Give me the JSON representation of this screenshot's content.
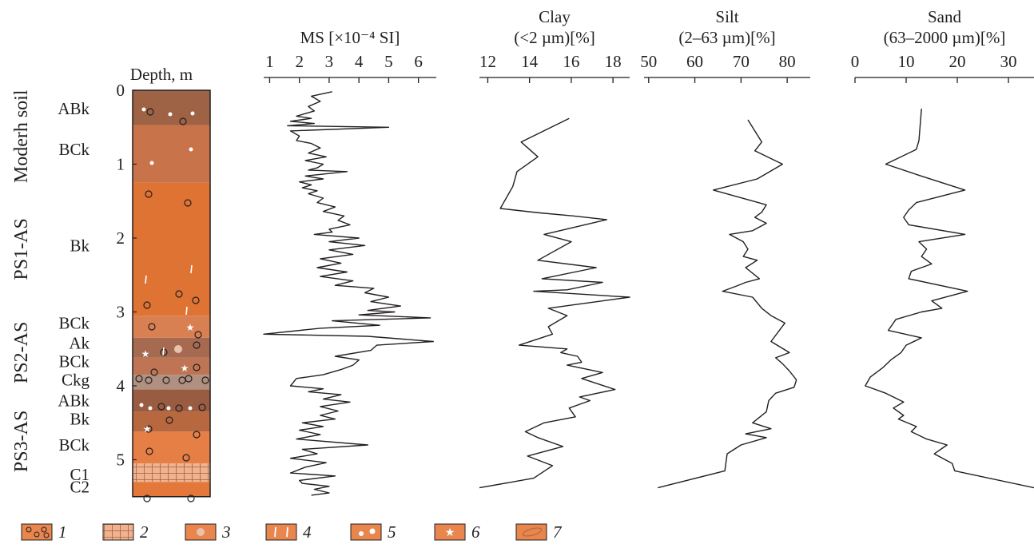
{
  "column": {
    "depth_label": "Depth, m",
    "depth_ticks": [
      "0",
      "1",
      "2",
      "3",
      "4",
      "5"
    ],
    "units": [
      {
        "label": "Moderh soil",
        "top": 0,
        "bottom": 1.25
      },
      {
        "label": "PS1-AS",
        "top": 1.25,
        "bottom": 3.05
      },
      {
        "label": "PS2-AS",
        "top": 3.05,
        "bottom": 4.05
      },
      {
        "label": "PS3-AS",
        "top": 4.05,
        "bottom": 5.45
      }
    ],
    "horizons": [
      {
        "label": "ABk",
        "top": 0,
        "bottom": 0.47,
        "label_depth": 0.25,
        "color": "#9e6245"
      },
      {
        "label": "BCk",
        "top": 0.47,
        "bottom": 1.25,
        "label_depth": 0.8,
        "color": "#c8734a"
      },
      {
        "label": "Bk",
        "top": 1.25,
        "bottom": 3.05,
        "label_depth": 2.1,
        "color": "#de7334"
      },
      {
        "label": "BCk",
        "top": 3.05,
        "bottom": 3.35,
        "label_depth": 3.15,
        "color": "#d98052"
      },
      {
        "label": "Ak",
        "top": 3.35,
        "bottom": 3.62,
        "label_depth": 3.42,
        "color": "#a66a51"
      },
      {
        "label": "BCk",
        "top": 3.62,
        "bottom": 3.85,
        "label_depth": 3.67,
        "color": "#bf7553"
      },
      {
        "label": "Ckg",
        "top": 3.85,
        "bottom": 4.05,
        "label_depth": 3.92,
        "color": "#b09080"
      },
      {
        "label": "ABk",
        "top": 4.05,
        "bottom": 4.35,
        "label_depth": 4.2,
        "color": "#995c40"
      },
      {
        "label": "Bk",
        "top": 4.35,
        "bottom": 4.62,
        "label_depth": 4.45,
        "color": "#b8683f"
      },
      {
        "label": "BCk",
        "top": 4.62,
        "bottom": 5.05,
        "label_depth": 4.8,
        "color": "#e57f45"
      },
      {
        "label": "C1",
        "top": 5.05,
        "bottom": 5.3,
        "label_depth": 5.2,
        "color": "#f0b38e"
      },
      {
        "label": "C2",
        "top": 5.3,
        "bottom": 5.5,
        "label_depth": 5.37,
        "color": "#e3783a"
      }
    ]
  },
  "legend": {
    "items": [
      {
        "number": "1",
        "symbol": "carbonate-nodules",
        "color": "#e8864d"
      },
      {
        "number": "2",
        "symbol": "laminated-grid",
        "color": "#f0b38e"
      },
      {
        "number": "3",
        "symbol": "krotovina-spot",
        "color": "#e8864d"
      },
      {
        "number": "4",
        "symbol": "carbonate-veins",
        "color": "#e8864d"
      },
      {
        "number": "5",
        "symbol": "white-dots",
        "color": "#e8864d"
      },
      {
        "number": "6",
        "symbol": "white-star",
        "color": "#e8864d"
      },
      {
        "number": "7",
        "symbol": "oval-lens",
        "color": "#e8864d"
      }
    ]
  },
  "chart_data": [
    {
      "type": "line",
      "title": "MS [×10⁻⁴ SI]",
      "title_line1": "",
      "title_line2": "MS [×10⁻⁴ SI]",
      "xlabel": "MS [×10⁻⁴ SI]",
      "ylabel": "Depth, m",
      "xlim": [
        0.8,
        6.6
      ],
      "ylim": [
        0,
        5.5
      ],
      "xticks": [
        1,
        2,
        3,
        4,
        5,
        6
      ],
      "series": [
        {
          "x": [
            3.1,
            2.4,
            2.7,
            2.3,
            2.5,
            1.9,
            2.4,
            1.7,
            2.5,
            1.6,
            5.0,
            1.7,
            2.0,
            1.9,
            2.4,
            2.7,
            2.3,
            2.9,
            2.2,
            2.8,
            2.6,
            2.3,
            3.6,
            2.2,
            2.8,
            2.0,
            2.4,
            2.1,
            2.6,
            2.3,
            2.8,
            2.6,
            3.2,
            2.8,
            3.5,
            3.3,
            3.7,
            3.0,
            3.1,
            2.5,
            4.0,
            3.0,
            4.2,
            3.0,
            3.8,
            2.7,
            3.4,
            2.6,
            3.6,
            2.7,
            3.8,
            3.2,
            4.5,
            4.2,
            5.0,
            4.4,
            5.4,
            4.3,
            5.2,
            4.0,
            6.4,
            3.1,
            4.7,
            2.7,
            0.8,
            4.3,
            6.5,
            4.6,
            4.4,
            3.2,
            4.0,
            3.8,
            3.4,
            2.8,
            1.9,
            1.7,
            2.8,
            2.3,
            3.4,
            2.8,
            3.7,
            2.7,
            3.3,
            2.7,
            3.2,
            2.1,
            2.8,
            2.0,
            2.7,
            1.9,
            4.3,
            2.1,
            2.6,
            1.7,
            2.9,
            2.2,
            1.7,
            3.2,
            2.0,
            2.1,
            3.0,
            2.5,
            3.0,
            2.4
          ],
          "y": [
            0.02,
            0.08,
            0.15,
            0.22,
            0.28,
            0.35,
            0.38,
            0.42,
            0.45,
            0.48,
            0.5,
            0.55,
            0.62,
            0.68,
            0.72,
            0.78,
            0.85,
            0.9,
            0.95,
            1.0,
            1.05,
            1.08,
            1.1,
            1.16,
            1.2,
            1.24,
            1.28,
            1.32,
            1.36,
            1.4,
            1.46,
            1.52,
            1.58,
            1.64,
            1.7,
            1.76,
            1.82,
            1.88,
            1.92,
            1.95,
            2.0,
            2.05,
            2.1,
            2.16,
            2.22,
            2.28,
            2.34,
            2.4,
            2.46,
            2.52,
            2.58,
            2.64,
            2.68,
            2.74,
            2.8,
            2.86,
            2.92,
            2.98,
            3.0,
            3.04,
            3.08,
            3.12,
            3.18,
            3.22,
            3.3,
            3.33,
            3.4,
            3.45,
            3.52,
            3.6,
            3.65,
            3.72,
            3.78,
            3.85,
            3.9,
            4.0,
            4.04,
            4.08,
            4.12,
            4.18,
            4.22,
            4.28,
            4.34,
            4.4,
            4.45,
            4.5,
            4.55,
            4.6,
            4.66,
            4.72,
            4.8,
            4.86,
            4.92,
            4.98,
            5.04,
            5.1,
            5.18,
            5.22,
            5.28,
            5.32,
            5.36,
            5.4,
            5.45,
            5.48
          ]
        }
      ]
    },
    {
      "type": "line",
      "title": "Clay (<2 µm)[%]",
      "title_line1": "Clay",
      "title_line2": "(<2 µm)[%]",
      "xlabel": "Clay (<2 µm)[%]",
      "ylabel": "Depth, m",
      "xlim": [
        11.6,
        18.8
      ],
      "ylim": [
        0,
        5.5
      ],
      "xticks": [
        12,
        14,
        16,
        18
      ],
      "series": [
        {
          "x": [
            15.9,
            13.6,
            14.4,
            13.4,
            13.2,
            12.6,
            14.5,
            16.1,
            17.7,
            14.7,
            16.0,
            14.4,
            17.2,
            14.6,
            17.5,
            15.8,
            14.2,
            18.8,
            14.9,
            15.8,
            15.2,
            14.9,
            15.1,
            13.5,
            15.8,
            15.5,
            16.3,
            16.5,
            15.8,
            17.5,
            16.5,
            18.1,
            16.4,
            16.9,
            15.9,
            16.2,
            14.7,
            13.8,
            14.4,
            15.6,
            13.9,
            15.1,
            14.2,
            11.6
          ],
          "y": [
            0.38,
            0.7,
            0.9,
            1.1,
            1.3,
            1.6,
            1.66,
            1.7,
            1.75,
            1.95,
            2.05,
            2.3,
            2.4,
            2.55,
            2.6,
            2.7,
            2.72,
            2.8,
            2.95,
            3.05,
            3.15,
            3.2,
            3.3,
            3.45,
            3.5,
            3.55,
            3.6,
            3.68,
            3.72,
            3.82,
            3.9,
            4.05,
            4.15,
            4.2,
            4.3,
            4.42,
            4.5,
            4.62,
            4.7,
            4.82,
            4.95,
            5.08,
            5.25,
            5.38
          ]
        }
      ]
    },
    {
      "type": "line",
      "title": "Silt (2–63 µm)[%]",
      "title_line1": "Silt",
      "title_line2": "(2–63 µm)[%]",
      "xlabel": "Silt (2–63 µm)[%]",
      "ylabel": "Depth, m",
      "xlim": [
        49,
        85
      ],
      "ylim": [
        0,
        5.5
      ],
      "xticks": [
        50,
        60,
        70,
        80
      ],
      "series": [
        {
          "x": [
            71.5,
            74.5,
            73.0,
            79.0,
            73.5,
            64.0,
            75.5,
            74.5,
            73.0,
            75.5,
            72.5,
            67.5,
            70.5,
            71.5,
            70.5,
            73.5,
            71.0,
            74.0,
            71.0,
            69.0,
            66.0,
            72.5,
            74.5,
            76.5,
            79.5,
            76.5,
            80.5,
            77.5,
            79.0,
            80.5,
            82.0,
            81.5,
            77.5,
            76.0,
            75.5,
            72.5,
            76.5,
            71.0,
            75.5,
            70.0,
            67.0,
            66.5,
            52.0
          ],
          "y": [
            0.4,
            0.7,
            0.82,
            1.0,
            1.2,
            1.35,
            1.55,
            1.65,
            1.72,
            1.8,
            1.9,
            1.95,
            2.05,
            2.15,
            2.25,
            2.3,
            2.4,
            2.55,
            2.6,
            2.65,
            2.72,
            2.8,
            2.95,
            3.05,
            3.15,
            3.4,
            3.55,
            3.62,
            3.7,
            3.8,
            3.92,
            4.02,
            4.1,
            4.2,
            4.35,
            4.5,
            4.58,
            4.65,
            4.7,
            4.8,
            4.92,
            5.15,
            5.38
          ]
        }
      ]
    },
    {
      "type": "line",
      "title": "Sand (63–2000 µm)[%]",
      "title_line1": "Sand",
      "title_line2": "(63–2000 µm)[%]",
      "xlabel": "Sand (63–2000 µm)[%]",
      "ylabel": "Depth, m",
      "xlim": [
        0,
        35
      ],
      "ylim": [
        0,
        5.5
      ],
      "xticks": [
        0,
        10,
        20,
        30
      ],
      "series": [
        {
          "x": [
            13.0,
            12.5,
            12.0,
            6.0,
            12.5,
            21.5,
            12.0,
            10.5,
            9.5,
            10.5,
            21.5,
            12.5,
            14.0,
            13.0,
            15.0,
            11.0,
            10.5,
            22.0,
            15.0,
            17.0,
            13.0,
            8.0,
            6.5,
            13.0,
            10.0,
            9.0,
            7.0,
            5.5,
            3.0,
            2.0,
            6.0,
            9.5,
            7.5,
            9.5,
            8.5,
            12.0,
            11.0,
            14.0,
            18.0,
            15.5,
            19.0,
            19.5,
            35.0
          ],
          "y": [
            0.25,
            0.68,
            0.8,
            1.0,
            1.15,
            1.35,
            1.52,
            1.62,
            1.72,
            1.82,
            1.95,
            2.05,
            2.15,
            2.25,
            2.35,
            2.45,
            2.55,
            2.72,
            2.85,
            2.95,
            3.0,
            3.1,
            3.25,
            3.35,
            3.45,
            3.55,
            3.65,
            3.75,
            3.88,
            4.0,
            4.1,
            4.22,
            4.3,
            4.4,
            4.45,
            4.55,
            4.62,
            4.72,
            4.8,
            4.92,
            5.05,
            5.15,
            5.38
          ]
        }
      ]
    }
  ]
}
